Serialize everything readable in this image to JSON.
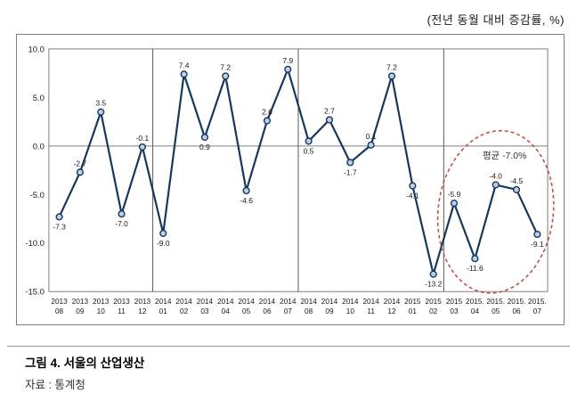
{
  "header": {
    "unit_note": "(전년 동월 대비 증감률, %)"
  },
  "caption": {
    "figure_title": "그림 4. 서울의 산업생산",
    "source": "자료 : 통계청"
  },
  "chart_data": {
    "type": "line",
    "categories": [
      {
        "year": "2013",
        "month": "08"
      },
      {
        "year": "2013",
        "month": "09"
      },
      {
        "year": "2013",
        "month": "10"
      },
      {
        "year": "2013",
        "month": "11"
      },
      {
        "year": "2013",
        "month": "12"
      },
      {
        "year": "2014",
        "month": "01"
      },
      {
        "year": "2014",
        "month": "02"
      },
      {
        "year": "2014",
        "month": "03"
      },
      {
        "year": "2014",
        "month": "04"
      },
      {
        "year": "2014",
        "month": "05"
      },
      {
        "year": "2014",
        "month": "06"
      },
      {
        "year": "2014",
        "month": "07"
      },
      {
        "year": "2014",
        "month": "08"
      },
      {
        "year": "2014",
        "month": "09"
      },
      {
        "year": "2014",
        "month": "10"
      },
      {
        "year": "2014",
        "month": "11"
      },
      {
        "year": "2014",
        "month": "12"
      },
      {
        "year": "2015",
        "month": "01"
      },
      {
        "year": "2015",
        "month": "02"
      },
      {
        "year": "2015",
        "month": "03"
      },
      {
        "year": "2015.",
        "month": "04"
      },
      {
        "year": "2015.",
        "month": "05"
      },
      {
        "year": "2015.",
        "month": "06"
      },
      {
        "year": "2015.",
        "month": "07"
      }
    ],
    "values": [
      -7.3,
      -2.7,
      3.5,
      -7.0,
      -0.1,
      -9.0,
      7.4,
      0.9,
      7.2,
      -4.6,
      2.6,
      7.9,
      0.5,
      2.7,
      -1.7,
      0.1,
      7.2,
      -4.1,
      -13.2,
      -5.9,
      -11.6,
      -4.0,
      -4.5,
      -9.1
    ],
    "label_pos": [
      "below",
      "above",
      "above",
      "below",
      "above",
      "below",
      "above",
      "below",
      "above",
      "below",
      "above",
      "above",
      "below",
      "above",
      "below",
      "above",
      "above",
      "below",
      "below",
      "above",
      "below",
      "above",
      "above",
      "below"
    ],
    "ylim": [
      -15,
      10
    ],
    "yticks": [
      "10.0",
      "5.0",
      "0.0",
      "-5.0",
      "-10.0",
      "-15.0"
    ],
    "separators_after_index": [
      4,
      11,
      18
    ],
    "annotation": {
      "text": "평균 -7.0%",
      "from_index": 19,
      "to_index": 23,
      "average": -7.0
    },
    "legend": "none",
    "grid": "zero-line-only",
    "colors": {
      "line": "#17375E",
      "marker_fill": "#BCCFE5",
      "annotation": "#C0504D",
      "axis": "#7F7F7F",
      "label": "#1A1A1A"
    }
  }
}
